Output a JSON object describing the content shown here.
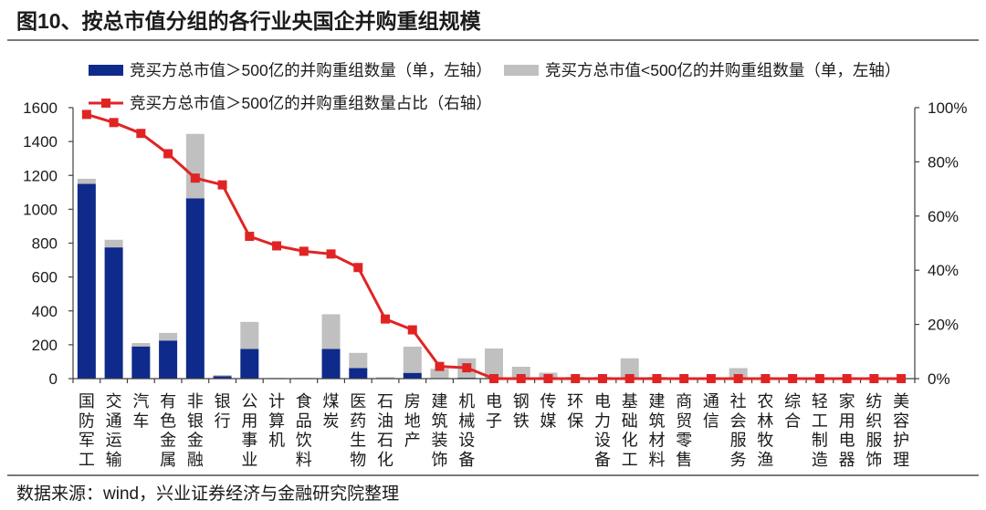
{
  "title": "图10、按总市值分组的各行业央国企并购重组规模",
  "source": "数据来源：wind，兴业证券经济与金融研究院整理",
  "colors": {
    "large_cap_bar": "#0e2a8a",
    "small_cap_bar": "#c0c0c0",
    "ratio_line": "#e02424",
    "axis": "#404040",
    "text": "#1a1a1a"
  },
  "chart_data": {
    "type": "bar",
    "stacked": true,
    "categories": [
      "国防军工",
      "交通运输",
      "汽车",
      "有色金属",
      "非银金融",
      "银行",
      "公用事业",
      "计算机",
      "食品饮料",
      "煤炭",
      "医药生物",
      "石油石化",
      "房地产",
      "建筑装饰",
      "机械设备",
      "电子",
      "钢铁",
      "传媒",
      "环保",
      "电力设备",
      "基础化工",
      "建筑材料",
      "商贸零售",
      "通信",
      "社会服务",
      "农林牧渔",
      "综合",
      "轻工制造",
      "家用电器",
      "纺织服饰",
      "美容护理"
    ],
    "series": [
      {
        "name": "竞买方总市值＞500亿的并购重组数量（单，左轴）",
        "type": "bar",
        "axis": "left",
        "values": [
          1150,
          775,
          190,
          225,
          1065,
          15,
          175,
          2,
          2,
          175,
          62,
          2,
          34,
          3,
          5,
          0,
          0,
          0,
          0,
          0,
          0,
          0,
          0,
          0,
          0,
          0,
          0,
          0,
          0,
          0,
          0
        ]
      },
      {
        "name": "竞买方总市值<500亿的并购重组数量（单，左轴）",
        "type": "bar",
        "axis": "left",
        "values": [
          30,
          45,
          20,
          45,
          380,
          6,
          160,
          2,
          2,
          205,
          90,
          7,
          155,
          55,
          115,
          178,
          70,
          35,
          10,
          10,
          120,
          10,
          5,
          5,
          62,
          5,
          3,
          3,
          3,
          3,
          3
        ]
      },
      {
        "name": "竞买方总市值＞500亿的并购重组数量占比（右轴）",
        "type": "line",
        "axis": "right",
        "unit": "%",
        "values": [
          97.5,
          94.5,
          90.5,
          83,
          74,
          71.5,
          52.5,
          49,
          47,
          46,
          41,
          22,
          18,
          4.5,
          4,
          0,
          0,
          0,
          0,
          0,
          0,
          0,
          0,
          0,
          0,
          0,
          0,
          0,
          0,
          0,
          0
        ]
      }
    ],
    "y_left": {
      "lim": [
        0,
        1600
      ],
      "ticks": [
        0,
        200,
        400,
        600,
        800,
        1000,
        1200,
        1400,
        1600
      ],
      "tick_labels": [
        "0",
        "200",
        "400",
        "600",
        "800",
        "1000",
        "1200",
        "1400",
        "1600"
      ]
    },
    "y_right": {
      "lim": [
        0,
        100
      ],
      "ticks": [
        0,
        20,
        40,
        60,
        80,
        100
      ],
      "tick_labels": [
        "0%",
        "20%",
        "40%",
        "60%",
        "80%",
        "100%"
      ]
    },
    "grid": false,
    "legend_position": "top"
  }
}
